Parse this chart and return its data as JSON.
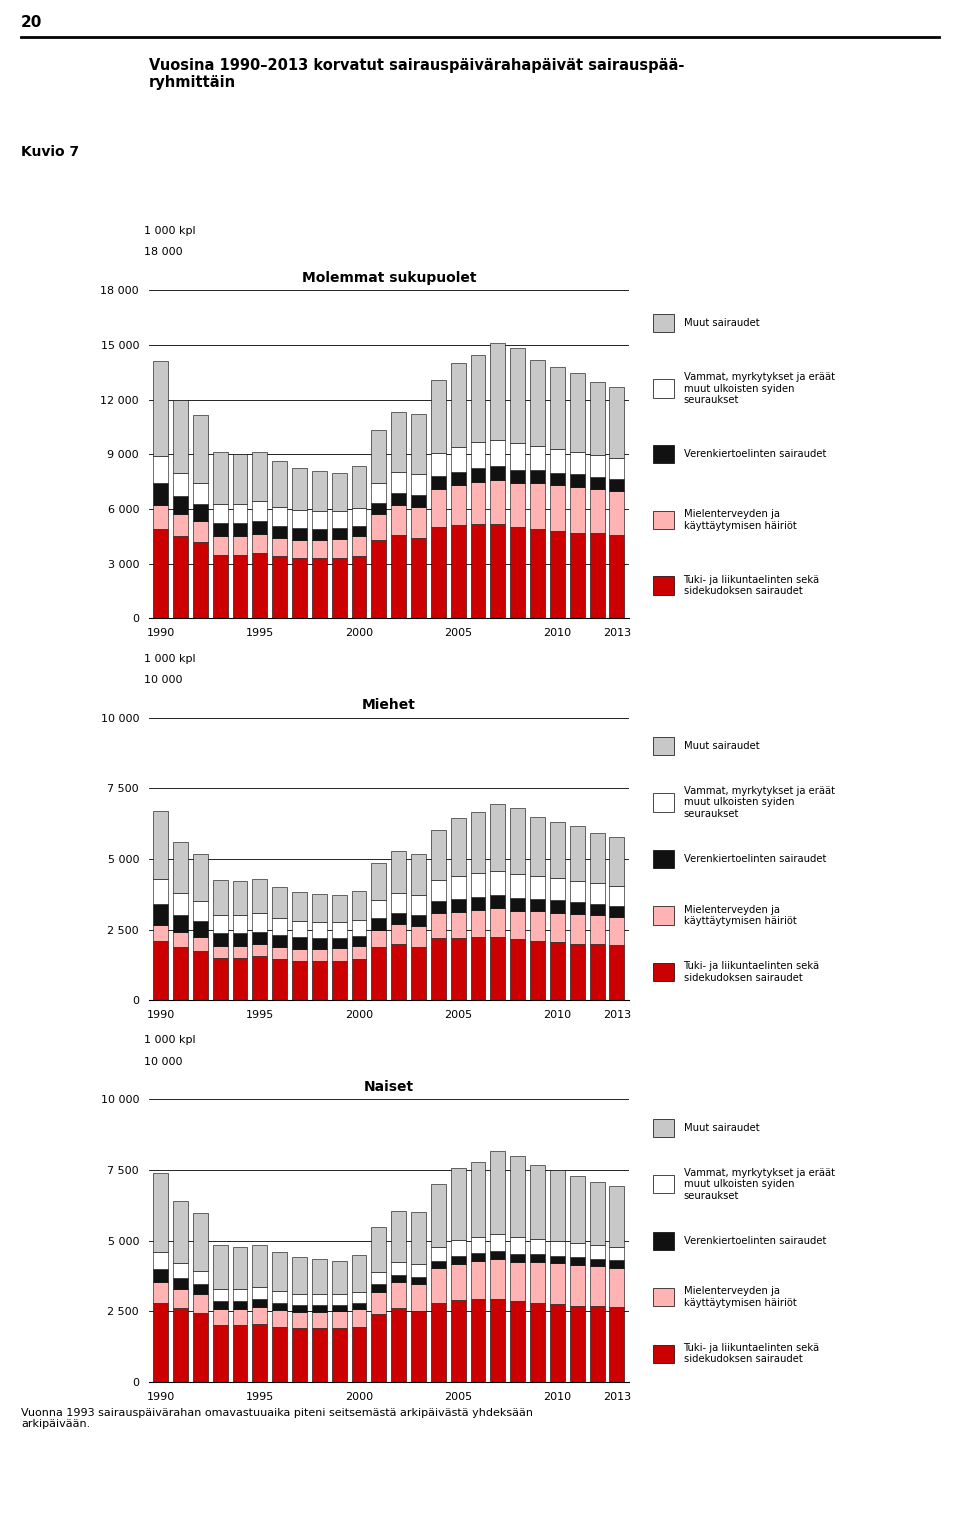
{
  "title": "Vuosina 1990–2013 korvatut sairauspäivärahapäivät sairauspää-\nryhmittäin",
  "page_number": "20",
  "figure_label": "Kuvio 7",
  "subplot_titles": [
    "Molemmat sukupuolet",
    "Miehet",
    "Naiset"
  ],
  "ylabel": "1 000 kpl",
  "footnote": "Vuonna 1993 sairauspäivärahan omavastuuaika piteni seitsemästä arkipäivästä yhdeksään\narkipäivään.",
  "years": [
    1990,
    1991,
    1992,
    1993,
    1994,
    1995,
    1996,
    1997,
    1998,
    1999,
    2000,
    2001,
    2002,
    2003,
    2004,
    2005,
    2006,
    2007,
    2008,
    2009,
    2010,
    2011,
    2012,
    2013
  ],
  "colors": {
    "tuki": "#cc0000",
    "mielenterveys": "#ffb3b3",
    "verenkierto": "#111111",
    "vammat": "#ffffff",
    "muut": "#c8c8c8"
  },
  "legend_labels": [
    "Muut sairaudet",
    "Vammat, myrkytykset ja eräät\nmuut ulkoisten syiden\nseuraukset",
    "Verenkiertoelinten sairaudet",
    "Mielenterveyden ja\nkäyttäytymisen häiriöt",
    "Tuki- ja liikuntaelinten sekä\nsidekudoksen sairaudet"
  ],
  "molemmat": {
    "tuki": [
      4900,
      4500,
      4200,
      3500,
      3500,
      3600,
      3400,
      3300,
      3300,
      3300,
      3400,
      4300,
      4600,
      4400,
      5000,
      5100,
      5200,
      5200,
      5000,
      4900,
      4800,
      4700,
      4700,
      4600
    ],
    "mielenterveys": [
      1300,
      1200,
      1150,
      1000,
      1000,
      1050,
      1000,
      1000,
      1000,
      1050,
      1100,
      1400,
      1600,
      1700,
      2100,
      2200,
      2300,
      2400,
      2400,
      2500,
      2500,
      2500,
      2400,
      2400
    ],
    "verenkierto": [
      1200,
      1000,
      900,
      750,
      750,
      700,
      680,
      650,
      620,
      600,
      580,
      650,
      680,
      650,
      700,
      750,
      750,
      750,
      750,
      720,
      700,
      700,
      680,
      650
    ],
    "vammat": [
      1500,
      1300,
      1200,
      1050,
      1050,
      1100,
      1050,
      1000,
      980,
      950,
      970,
      1100,
      1150,
      1150,
      1250,
      1350,
      1400,
      1450,
      1450,
      1350,
      1300,
      1250,
      1200,
      1150
    ],
    "muut": [
      5200,
      4000,
      3700,
      2800,
      2700,
      2700,
      2500,
      2300,
      2200,
      2100,
      2300,
      2900,
      3300,
      3300,
      4000,
      4600,
      4800,
      5300,
      5200,
      4700,
      4500,
      4300,
      4000,
      3900
    ]
  },
  "miehet": {
    "tuki": [
      2100,
      1900,
      1750,
      1500,
      1500,
      1550,
      1450,
      1400,
      1400,
      1400,
      1450,
      1900,
      2000,
      1900,
      2200,
      2200,
      2250,
      2250,
      2150,
      2100,
      2050,
      2000,
      2000,
      1950
    ],
    "mielenterveys": [
      550,
      500,
      480,
      420,
      420,
      440,
      420,
      420,
      420,
      440,
      460,
      600,
      680,
      720,
      880,
      920,
      960,
      1000,
      1000,
      1050,
      1050,
      1050,
      1000,
      1000
    ],
    "verenkierto": [
      750,
      620,
      560,
      470,
      470,
      440,
      420,
      400,
      380,
      370,
      360,
      400,
      420,
      400,
      430,
      460,
      460,
      460,
      460,
      440,
      430,
      430,
      420,
      400
    ],
    "vammat": [
      900,
      780,
      720,
      630,
      630,
      660,
      630,
      600,
      580,
      570,
      580,
      660,
      690,
      690,
      750,
      810,
      840,
      870,
      870,
      810,
      780,
      750,
      720,
      690
    ],
    "muut": [
      2400,
      1800,
      1650,
      1250,
      1200,
      1200,
      1100,
      1020,
      980,
      940,
      1020,
      1300,
      1480,
      1480,
      1780,
      2050,
      2140,
      2360,
      2320,
      2100,
      2000,
      1920,
      1780,
      1740
    ]
  },
  "naiset": {
    "tuki": [
      2800,
      2600,
      2450,
      2000,
      2000,
      2050,
      1950,
      1900,
      1900,
      1900,
      1950,
      2400,
      2600,
      2500,
      2800,
      2900,
      2950,
      2950,
      2850,
      2800,
      2750,
      2700,
      2700,
      2650
    ],
    "mielenterveys": [
      750,
      700,
      670,
      580,
      580,
      610,
      580,
      580,
      580,
      610,
      640,
      800,
      920,
      980,
      1220,
      1280,
      1340,
      1400,
      1400,
      1450,
      1450,
      1450,
      1400,
      1400
    ],
    "verenkierto": [
      450,
      380,
      340,
      280,
      280,
      260,
      260,
      250,
      240,
      230,
      220,
      250,
      260,
      250,
      270,
      290,
      290,
      290,
      290,
      280,
      270,
      270,
      260,
      250
    ],
    "vammat": [
      600,
      520,
      480,
      420,
      420,
      440,
      420,
      400,
      400,
      380,
      390,
      440,
      460,
      460,
      500,
      540,
      560,
      580,
      580,
      540,
      520,
      500,
      480,
      460
    ],
    "muut": [
      2800,
      2200,
      2050,
      1550,
      1500,
      1500,
      1400,
      1280,
      1220,
      1160,
      1280,
      1600,
      1820,
      1820,
      2220,
      2550,
      2660,
      2940,
      2880,
      2600,
      2500,
      2380,
      2220,
      2160
    ]
  },
  "ylim_molemmat": [
    0,
    18000
  ],
  "ylim_miehet": [
    0,
    10000
  ],
  "ylim_naiset": [
    0,
    10000
  ],
  "yticks_molemmat": [
    0,
    3000,
    6000,
    9000,
    12000,
    15000,
    18000
  ],
  "yticks_miehet": [
    0,
    2500,
    5000,
    7500,
    10000
  ],
  "yticks_naiset": [
    0,
    2500,
    5000,
    7500,
    10000
  ]
}
